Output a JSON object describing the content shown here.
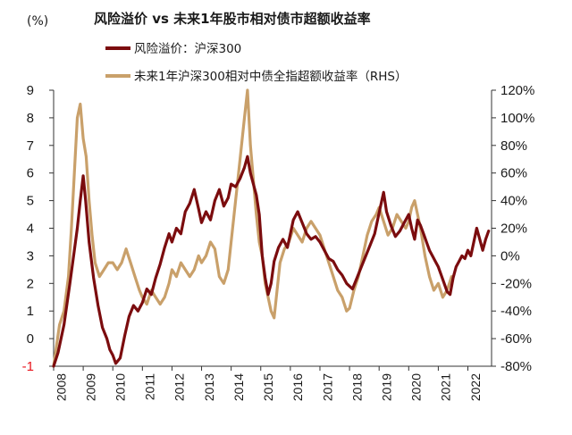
{
  "chart_data": {
    "type": "line",
    "title": "风险溢价 vs 未来1年股市相对债市超额收益率",
    "y_unit_label": "(%)",
    "left_axis": {
      "ticks": [
        "9",
        "8",
        "7",
        "6",
        "5",
        "4",
        "3",
        "2",
        "1",
        "0",
        "-1"
      ],
      "range": [
        -1,
        9
      ]
    },
    "right_axis": {
      "ticks": [
        "120%",
        "100%",
        "80%",
        "60%",
        "40%",
        "20%",
        "0%",
        "-20%",
        "-40%",
        "-60%",
        "-80%"
      ],
      "range": [
        -80,
        120
      ]
    },
    "x_ticks": [
      "2008",
      "2009",
      "2010",
      "2011",
      "2012",
      "2013",
      "2014",
      "2015",
      "2016",
      "2017",
      "2018",
      "2019",
      "2020",
      "2021",
      "2022"
    ],
    "colors": {
      "risk_premium": "#7b0c0e",
      "excess_return": "#c9a06a"
    },
    "legend": [
      {
        "name": "风险溢价：沪深300",
        "color": "#7b0c0e"
      },
      {
        "name": "未来1年沪深300相对中债全指超额收益率（RHS）",
        "color": "#c9a06a"
      }
    ],
    "series": [
      {
        "name": "风险溢价：沪深300",
        "axis": "left",
        "points": [
          [
            2008.0,
            -1.0
          ],
          [
            2008.15,
            -0.5
          ],
          [
            2008.35,
            0.5
          ],
          [
            2008.55,
            2.0
          ],
          [
            2008.7,
            3.2
          ],
          [
            2008.8,
            4.0
          ],
          [
            2008.9,
            5.0
          ],
          [
            2009.0,
            5.9
          ],
          [
            2009.08,
            5.0
          ],
          [
            2009.2,
            3.5
          ],
          [
            2009.35,
            2.2
          ],
          [
            2009.5,
            1.2
          ],
          [
            2009.65,
            0.4
          ],
          [
            2009.8,
            0.0
          ],
          [
            2009.9,
            -0.4
          ],
          [
            2010.0,
            -0.6
          ],
          [
            2010.1,
            -0.9
          ],
          [
            2010.25,
            -0.7
          ],
          [
            2010.4,
            0.1
          ],
          [
            2010.55,
            0.8
          ],
          [
            2010.7,
            1.2
          ],
          [
            2010.85,
            1.0
          ],
          [
            2011.0,
            1.3
          ],
          [
            2011.15,
            1.8
          ],
          [
            2011.3,
            1.6
          ],
          [
            2011.45,
            2.2
          ],
          [
            2011.6,
            2.7
          ],
          [
            2011.75,
            3.3
          ],
          [
            2011.9,
            3.8
          ],
          [
            2012.0,
            3.5
          ],
          [
            2012.15,
            4.0
          ],
          [
            2012.3,
            3.8
          ],
          [
            2012.45,
            4.6
          ],
          [
            2012.6,
            4.9
          ],
          [
            2012.75,
            5.4
          ],
          [
            2012.9,
            4.7
          ],
          [
            2013.0,
            4.2
          ],
          [
            2013.15,
            4.6
          ],
          [
            2013.3,
            4.3
          ],
          [
            2013.45,
            5.0
          ],
          [
            2013.6,
            5.4
          ],
          [
            2013.75,
            4.8
          ],
          [
            2013.9,
            5.1
          ],
          [
            2014.0,
            5.6
          ],
          [
            2014.15,
            5.5
          ],
          [
            2014.3,
            5.8
          ],
          [
            2014.45,
            6.2
          ],
          [
            2014.55,
            6.6
          ],
          [
            2014.65,
            6.0
          ],
          [
            2014.75,
            5.6
          ],
          [
            2014.85,
            5.2
          ],
          [
            2014.95,
            4.5
          ],
          [
            2015.05,
            3.0
          ],
          [
            2015.15,
            2.2
          ],
          [
            2015.25,
            1.6
          ],
          [
            2015.35,
            2.0
          ],
          [
            2015.45,
            2.8
          ],
          [
            2015.6,
            3.3
          ],
          [
            2015.75,
            3.6
          ],
          [
            2015.9,
            3.3
          ],
          [
            2016.0,
            3.8
          ],
          [
            2016.1,
            4.3
          ],
          [
            2016.25,
            4.6
          ],
          [
            2016.4,
            4.2
          ],
          [
            2016.55,
            3.8
          ],
          [
            2016.7,
            3.6
          ],
          [
            2016.85,
            3.7
          ],
          [
            2017.0,
            3.5
          ],
          [
            2017.15,
            3.2
          ],
          [
            2017.3,
            2.9
          ],
          [
            2017.45,
            2.8
          ],
          [
            2017.6,
            2.5
          ],
          [
            2017.75,
            2.3
          ],
          [
            2017.9,
            2.0
          ],
          [
            2018.0,
            1.9
          ],
          [
            2018.1,
            1.8
          ],
          [
            2018.25,
            2.2
          ],
          [
            2018.4,
            2.6
          ],
          [
            2018.55,
            3.0
          ],
          [
            2018.7,
            3.4
          ],
          [
            2018.85,
            3.8
          ],
          [
            2018.95,
            4.3
          ],
          [
            2019.05,
            4.8
          ],
          [
            2019.15,
            5.3
          ],
          [
            2019.25,
            4.6
          ],
          [
            2019.4,
            4.1
          ],
          [
            2019.55,
            3.7
          ],
          [
            2019.7,
            3.9
          ],
          [
            2019.85,
            4.2
          ],
          [
            2020.0,
            4.5
          ],
          [
            2020.1,
            4.0
          ],
          [
            2020.2,
            3.6
          ],
          [
            2020.3,
            4.3
          ],
          [
            2020.4,
            4.1
          ],
          [
            2020.5,
            3.8
          ],
          [
            2020.6,
            3.5
          ],
          [
            2020.7,
            3.2
          ],
          [
            2020.8,
            3.0
          ],
          [
            2020.9,
            2.8
          ],
          [
            2021.0,
            2.6
          ],
          [
            2021.1,
            2.3
          ],
          [
            2021.2,
            2.0
          ],
          [
            2021.3,
            1.7
          ],
          [
            2021.4,
            1.6
          ],
          [
            2021.5,
            2.2
          ],
          [
            2021.6,
            2.6
          ],
          [
            2021.7,
            2.8
          ],
          [
            2021.8,
            3.0
          ],
          [
            2021.9,
            2.9
          ],
          [
            2022.0,
            3.2
          ],
          [
            2022.1,
            3.0
          ],
          [
            2022.2,
            3.5
          ],
          [
            2022.3,
            4.0
          ],
          [
            2022.4,
            3.6
          ],
          [
            2022.5,
            3.2
          ],
          [
            2022.6,
            3.6
          ],
          [
            2022.7,
            3.9
          ]
        ]
      },
      {
        "name": "未来1年沪深300相对中债全指超额收益率（RHS）",
        "axis": "right",
        "points": [
          [
            2008.0,
            -80
          ],
          [
            2008.1,
            -65
          ],
          [
            2008.2,
            -50
          ],
          [
            2008.35,
            -40
          ],
          [
            2008.5,
            -15
          ],
          [
            2008.6,
            20
          ],
          [
            2008.7,
            60
          ],
          [
            2008.8,
            100
          ],
          [
            2008.9,
            110
          ],
          [
            2009.0,
            85
          ],
          [
            2009.1,
            72
          ],
          [
            2009.2,
            40
          ],
          [
            2009.3,
            15
          ],
          [
            2009.4,
            -5
          ],
          [
            2009.55,
            -15
          ],
          [
            2009.7,
            -10
          ],
          [
            2009.85,
            -5
          ],
          [
            2010.0,
            -5
          ],
          [
            2010.15,
            -10
          ],
          [
            2010.3,
            -5
          ],
          [
            2010.45,
            5
          ],
          [
            2010.6,
            -5
          ],
          [
            2010.75,
            -15
          ],
          [
            2010.9,
            -25
          ],
          [
            2011.0,
            -30
          ],
          [
            2011.15,
            -35
          ],
          [
            2011.3,
            -25
          ],
          [
            2011.45,
            -30
          ],
          [
            2011.6,
            -35
          ],
          [
            2011.75,
            -30
          ],
          [
            2011.9,
            -20
          ],
          [
            2012.0,
            -10
          ],
          [
            2012.15,
            -15
          ],
          [
            2012.3,
            -5
          ],
          [
            2012.45,
            -10
          ],
          [
            2012.6,
            -15
          ],
          [
            2012.75,
            -10
          ],
          [
            2012.9,
            0
          ],
          [
            2013.0,
            -5
          ],
          [
            2013.15,
            0
          ],
          [
            2013.3,
            10
          ],
          [
            2013.45,
            5
          ],
          [
            2013.6,
            -15
          ],
          [
            2013.75,
            -20
          ],
          [
            2013.9,
            -10
          ],
          [
            2014.0,
            10
          ],
          [
            2014.15,
            40
          ],
          [
            2014.3,
            70
          ],
          [
            2014.45,
            100
          ],
          [
            2014.55,
            120
          ],
          [
            2014.65,
            80
          ],
          [
            2014.75,
            55
          ],
          [
            2014.85,
            30
          ],
          [
            2014.95,
            10
          ],
          [
            2015.05,
            0
          ],
          [
            2015.15,
            -20
          ],
          [
            2015.25,
            -30
          ],
          [
            2015.35,
            -40
          ],
          [
            2015.45,
            -45
          ],
          [
            2015.55,
            -25
          ],
          [
            2015.65,
            -5
          ],
          [
            2015.8,
            5
          ],
          [
            2015.95,
            10
          ],
          [
            2016.1,
            20
          ],
          [
            2016.25,
            15
          ],
          [
            2016.4,
            10
          ],
          [
            2016.55,
            20
          ],
          [
            2016.7,
            25
          ],
          [
            2016.85,
            20
          ],
          [
            2017.0,
            15
          ],
          [
            2017.15,
            5
          ],
          [
            2017.3,
            -5
          ],
          [
            2017.45,
            -15
          ],
          [
            2017.6,
            -25
          ],
          [
            2017.75,
            -30
          ],
          [
            2017.9,
            -40
          ],
          [
            2018.0,
            -38
          ],
          [
            2018.15,
            -25
          ],
          [
            2018.3,
            -15
          ],
          [
            2018.45,
            0
          ],
          [
            2018.6,
            15
          ],
          [
            2018.75,
            25
          ],
          [
            2018.9,
            30
          ],
          [
            2019.0,
            35
          ],
          [
            2019.15,
            25
          ],
          [
            2019.3,
            15
          ],
          [
            2019.45,
            20
          ],
          [
            2019.6,
            30
          ],
          [
            2019.75,
            25
          ],
          [
            2019.9,
            20
          ],
          [
            2020.0,
            25
          ],
          [
            2020.1,
            35
          ],
          [
            2020.2,
            40
          ],
          [
            2020.3,
            30
          ],
          [
            2020.4,
            20
          ],
          [
            2020.55,
            0
          ],
          [
            2020.7,
            -15
          ],
          [
            2020.85,
            -25
          ],
          [
            2021.0,
            -20
          ],
          [
            2021.15,
            -30
          ],
          [
            2021.3,
            -25
          ],
          [
            2021.45,
            -15
          ]
        ]
      }
    ]
  }
}
